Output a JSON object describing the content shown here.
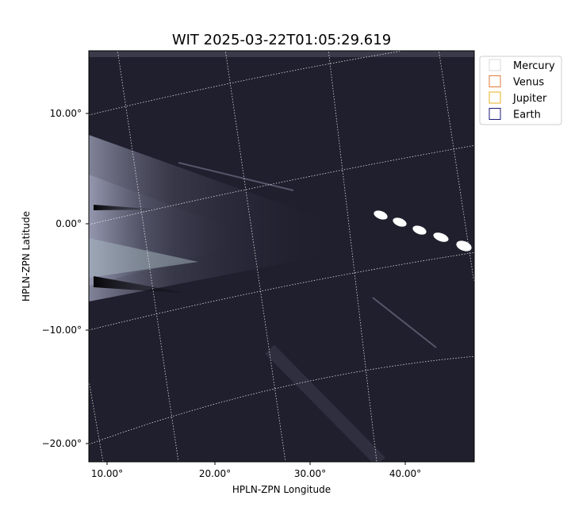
{
  "title": "WIT 2025-03-22T01:05:29.619",
  "x_label": "HPLN-ZPN Longitude",
  "y_label": "HPLN-ZPN Latitude",
  "x_ticks": [
    "10.00°",
    "20.00°",
    "30.00°",
    "40.00°"
  ],
  "y_ticks": [
    "10.00°",
    "0.00°",
    "−10.00°",
    "−20.00°"
  ],
  "legend": [
    {
      "name": "Mercury",
      "color": "#d9d9d9"
    },
    {
      "name": "Venus",
      "color": "#e07b39"
    },
    {
      "name": "Jupiter",
      "color": "#e8b020"
    },
    {
      "name": "Earth",
      "color": "#1a1a7a"
    }
  ]
}
